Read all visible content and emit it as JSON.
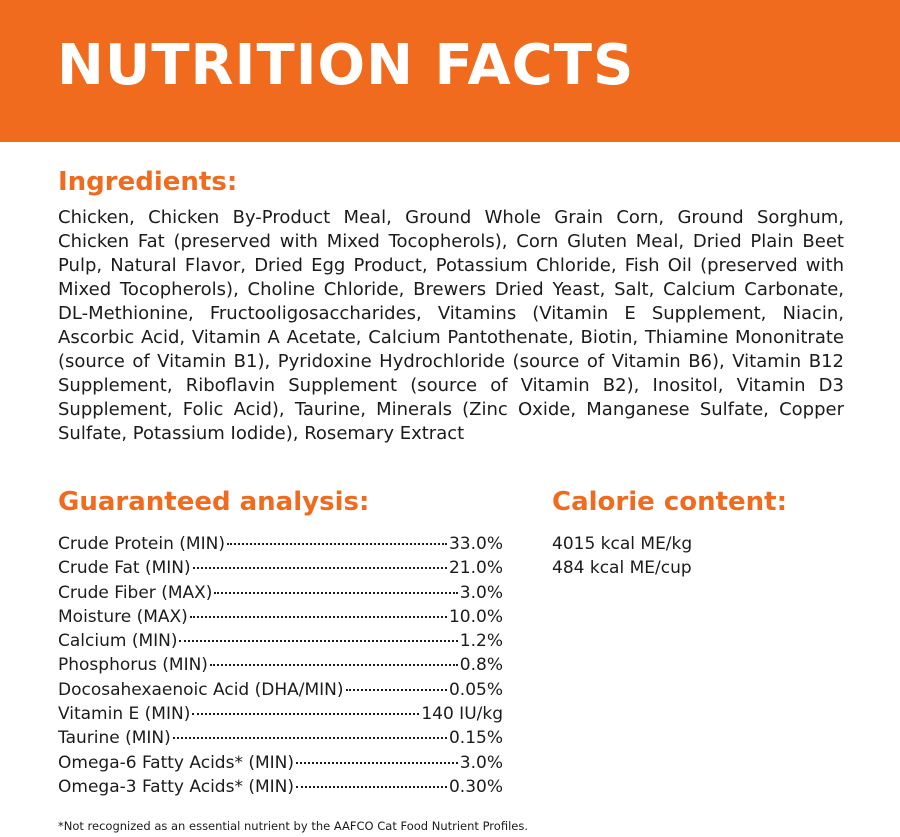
{
  "header": {
    "title": "NUTRITION FACTS"
  },
  "colors": {
    "accent": "#f16b1f",
    "text": "#1b1b1b",
    "background": "#ffffff"
  },
  "ingredients": {
    "heading": "Ingredients:",
    "text": "Chicken, Chicken By-Product Meal, Ground Whole Grain Corn, Ground Sorghum, Chicken Fat (preserved with Mixed Tocopherols), Corn Gluten Meal, Dried Plain Beet Pulp, Natural Flavor, Dried Egg Product, Potassium Chloride, Fish Oil (preserved with Mixed Tocopherols), Choline Chloride, Brewers Dried Yeast, Salt, Calcium Carbonate, DL-Methionine, Fructooligosaccharides, Vitamins (Vitamin E Supplement, Niacin, Ascorbic Acid, Vitamin A Acetate, Calcium Pantothenate, Biotin, Thiamine Mononitrate (source of Vitamin B1), Pyridoxine Hydrochloride (source of Vitamin B6), Vitamin B12 Supplement, Riboflavin Supplement (source of Vitamin B2), Inositol, Vitamin D3 Supplement, Folic Acid), Taurine, Minerals (Zinc Oxide, Manganese Sulfate, Copper Sulfate, Potassium Iodide), Rosemary Extract"
  },
  "guaranteed_analysis": {
    "heading": "Guaranteed analysis:",
    "rows": [
      {
        "name": "Crude Protein (MIN)",
        "value": "33.0%"
      },
      {
        "name": "Crude Fat (MIN)",
        "value": "21.0%"
      },
      {
        "name": "Crude Fiber (MAX)",
        "value": "3.0%"
      },
      {
        "name": "Moisture (MAX)",
        "value": "10.0%"
      },
      {
        "name": "Calcium (MIN)",
        "value": "1.2%"
      },
      {
        "name": "Phosphorus (MIN)",
        "value": "0.8%"
      },
      {
        "name": "Docosahexaenoic Acid (DHA/MIN)",
        "value": "0.05%"
      },
      {
        "name": "Vitamin E (MIN)",
        "value": "140 IU/kg"
      },
      {
        "name": "Taurine (MIN)",
        "value": "0.15%"
      },
      {
        "name": "Omega-6 Fatty Acids* (MIN)",
        "value": "3.0%"
      },
      {
        "name": "Omega-3 Fatty Acids* (MIN)",
        "value": "0.30%"
      }
    ]
  },
  "calorie_content": {
    "heading": "Calorie content:",
    "lines": [
      "4015 kcal ME/kg",
      "484 kcal ME/cup"
    ]
  },
  "footnote": "*Not recognized as an essential nutrient by the AAFCO Cat Food Nutrient Profiles."
}
